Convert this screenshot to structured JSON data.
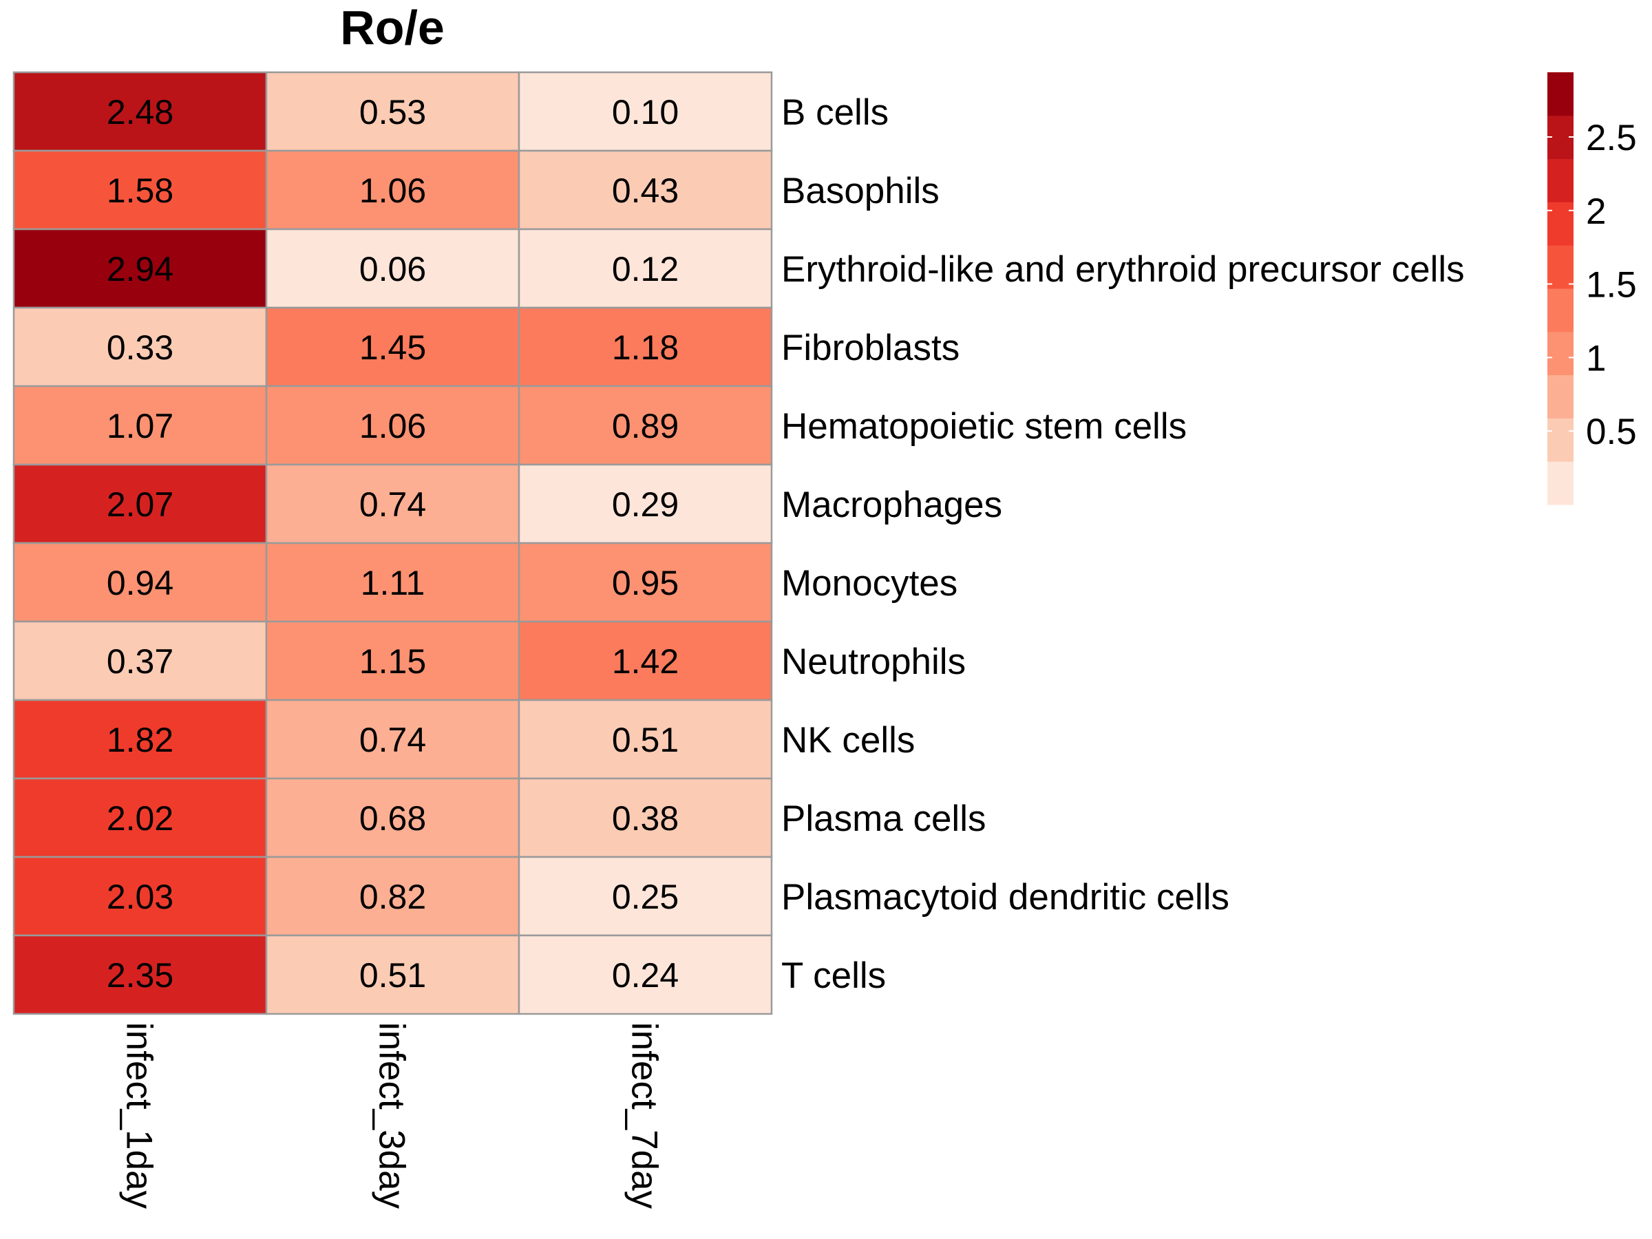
{
  "chart_data": {
    "type": "heatmap",
    "title": "Ro/e",
    "columns": [
      "infect_1day",
      "infect_3day",
      "infect_7day"
    ],
    "rows": [
      "B cells",
      "Basophils",
      "Erythroid-like and erythroid precursor cells",
      "Fibroblasts",
      "Hematopoietic stem cells",
      "Macrophages",
      "Monocytes",
      "Neutrophils",
      "NK cells",
      "Plasma cells",
      "Plasmacytoid dendritic cells",
      "T cells"
    ],
    "values": [
      [
        2.48,
        0.53,
        0.1
      ],
      [
        1.58,
        1.06,
        0.43
      ],
      [
        2.94,
        0.06,
        0.12
      ],
      [
        0.33,
        1.45,
        1.18
      ],
      [
        1.07,
        1.06,
        0.89
      ],
      [
        2.07,
        0.74,
        0.29
      ],
      [
        0.94,
        1.11,
        0.95
      ],
      [
        0.37,
        1.15,
        1.42
      ],
      [
        1.82,
        0.74,
        0.51
      ],
      [
        2.02,
        0.68,
        0.38
      ],
      [
        2.03,
        0.82,
        0.25
      ],
      [
        2.35,
        0.51,
        0.24
      ]
    ],
    "cell_text": [
      [
        "2.48",
        "0.53",
        "0.10"
      ],
      [
        "1.58",
        "1.06",
        "0.43"
      ],
      [
        "2.94",
        "0.06",
        "0.12"
      ],
      [
        "0.33",
        "1.45",
        "1.18"
      ],
      [
        "1.07",
        "1.06",
        "0.89"
      ],
      [
        "2.07",
        "0.74",
        "0.29"
      ],
      [
        "0.94",
        "1.11",
        "0.95"
      ],
      [
        "0.37",
        "1.15",
        "1.42"
      ],
      [
        "1.82",
        "0.74",
        "0.51"
      ],
      [
        "2.02",
        "0.68",
        "0.38"
      ],
      [
        "2.03",
        "0.82",
        "0.25"
      ],
      [
        "2.35",
        "0.51",
        "0.24"
      ]
    ],
    "color_scale": {
      "range": [
        0.0,
        2.94
      ],
      "colors": [
        "#FEE5D9",
        "#FCCBB4",
        "#FCAF93",
        "#FC9272",
        "#FB7B5C",
        "#F6553C",
        "#EF3B2C",
        "#D52221",
        "#BA1418",
        "#99000D"
      ],
      "ticks": [
        0.5,
        1,
        1.5,
        2,
        2.5
      ],
      "tick_labels": [
        "0.5",
        "1",
        "1.5",
        "2",
        "2.5"
      ]
    },
    "cell_border_color": "#9A9A9A",
    "legend_position": "top-right"
  }
}
